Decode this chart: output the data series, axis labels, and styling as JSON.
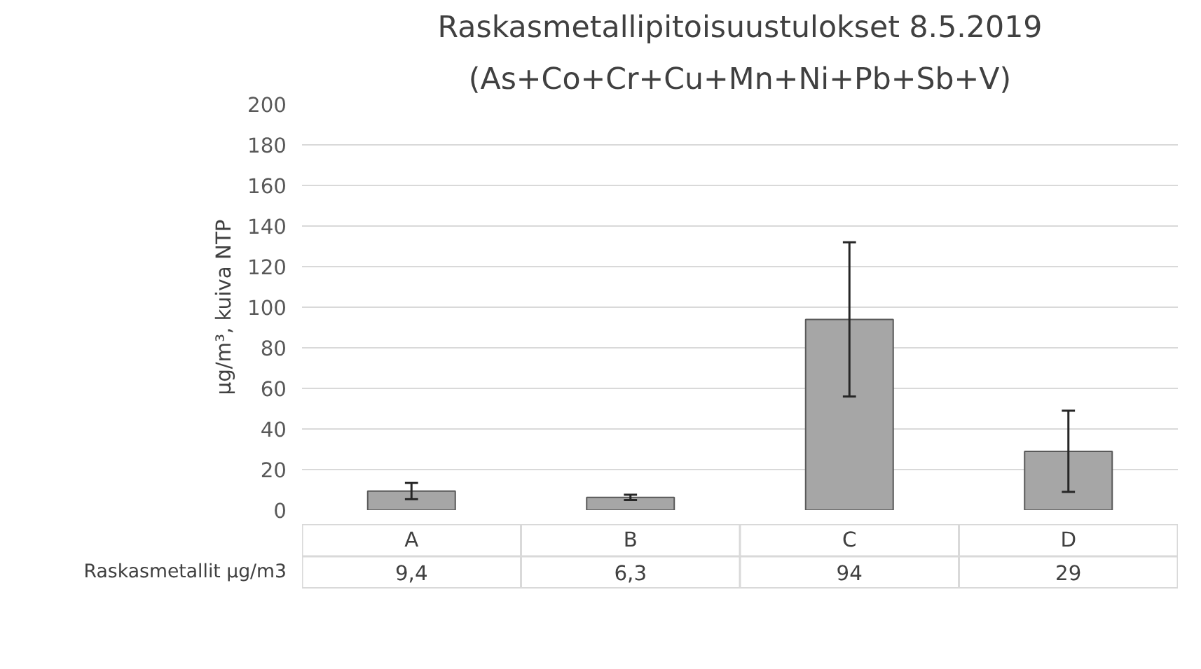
{
  "chart_data": {
    "type": "bar",
    "title": "Raskasmetallipitoisuustulokset 8.5.2019",
    "subtitle": "(As+Co+Cr+Cu+Mn+Ni+Pb+Sb+V)",
    "ylabel": "µg/m³, kuiva NTP",
    "categories": [
      "A",
      "B",
      "C",
      "D"
    ],
    "series": [
      {
        "name": "Raskasmetallit µg/m3",
        "color": "#a6a6a6",
        "values": [
          9.4,
          6.3,
          94,
          29
        ],
        "errors": [
          4,
          1.3,
          38,
          20
        ],
        "value_labels": [
          "9,4",
          "6,3",
          "94",
          "29"
        ]
      }
    ],
    "ylim": [
      0,
      200
    ],
    "yticks": [
      0,
      20,
      40,
      60,
      80,
      100,
      120,
      140,
      160,
      180,
      200
    ],
    "grid": "y"
  }
}
